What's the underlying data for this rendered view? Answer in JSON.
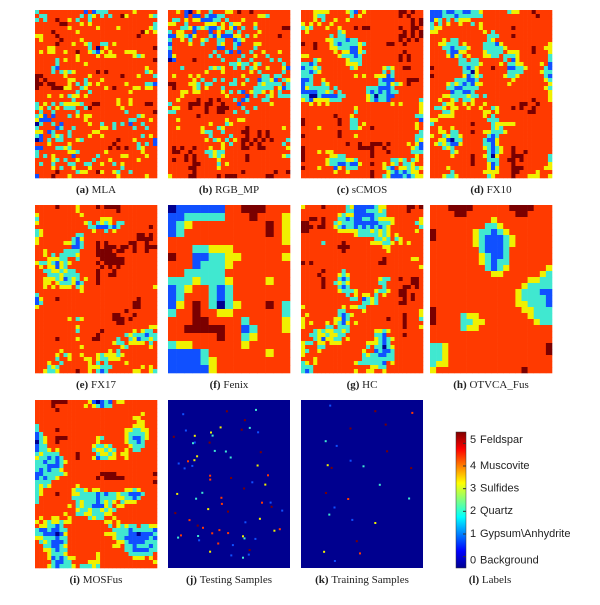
{
  "panels": [
    {
      "label": "(a)",
      "name": "MLA"
    },
    {
      "label": "(b)",
      "name": "RGB_MP"
    },
    {
      "label": "(c)",
      "name": "sCMOS"
    },
    {
      "label": "(d)",
      "name": "FX10"
    },
    {
      "label": "(e)",
      "name": "FX17"
    },
    {
      "label": "(f)",
      "name": "Fenix"
    },
    {
      "label": "(g)",
      "name": "HC"
    },
    {
      "label": "(h)",
      "name": "OTVCA_Fus"
    },
    {
      "label": "(i)",
      "name": "MOSFus"
    },
    {
      "label": "(j)",
      "name": "Testing Samples"
    },
    {
      "label": "(k)",
      "name": "Training Samples"
    }
  ],
  "legend": {
    "label": "(l)",
    "name": "Labels",
    "ticks": [
      0,
      1,
      2,
      3,
      4,
      5
    ],
    "classes": [
      "Background",
      "Gypsum\\Anhydrite",
      "Quartz",
      "Sulfides",
      "Muscovite",
      "Feldspar"
    ]
  }
}
